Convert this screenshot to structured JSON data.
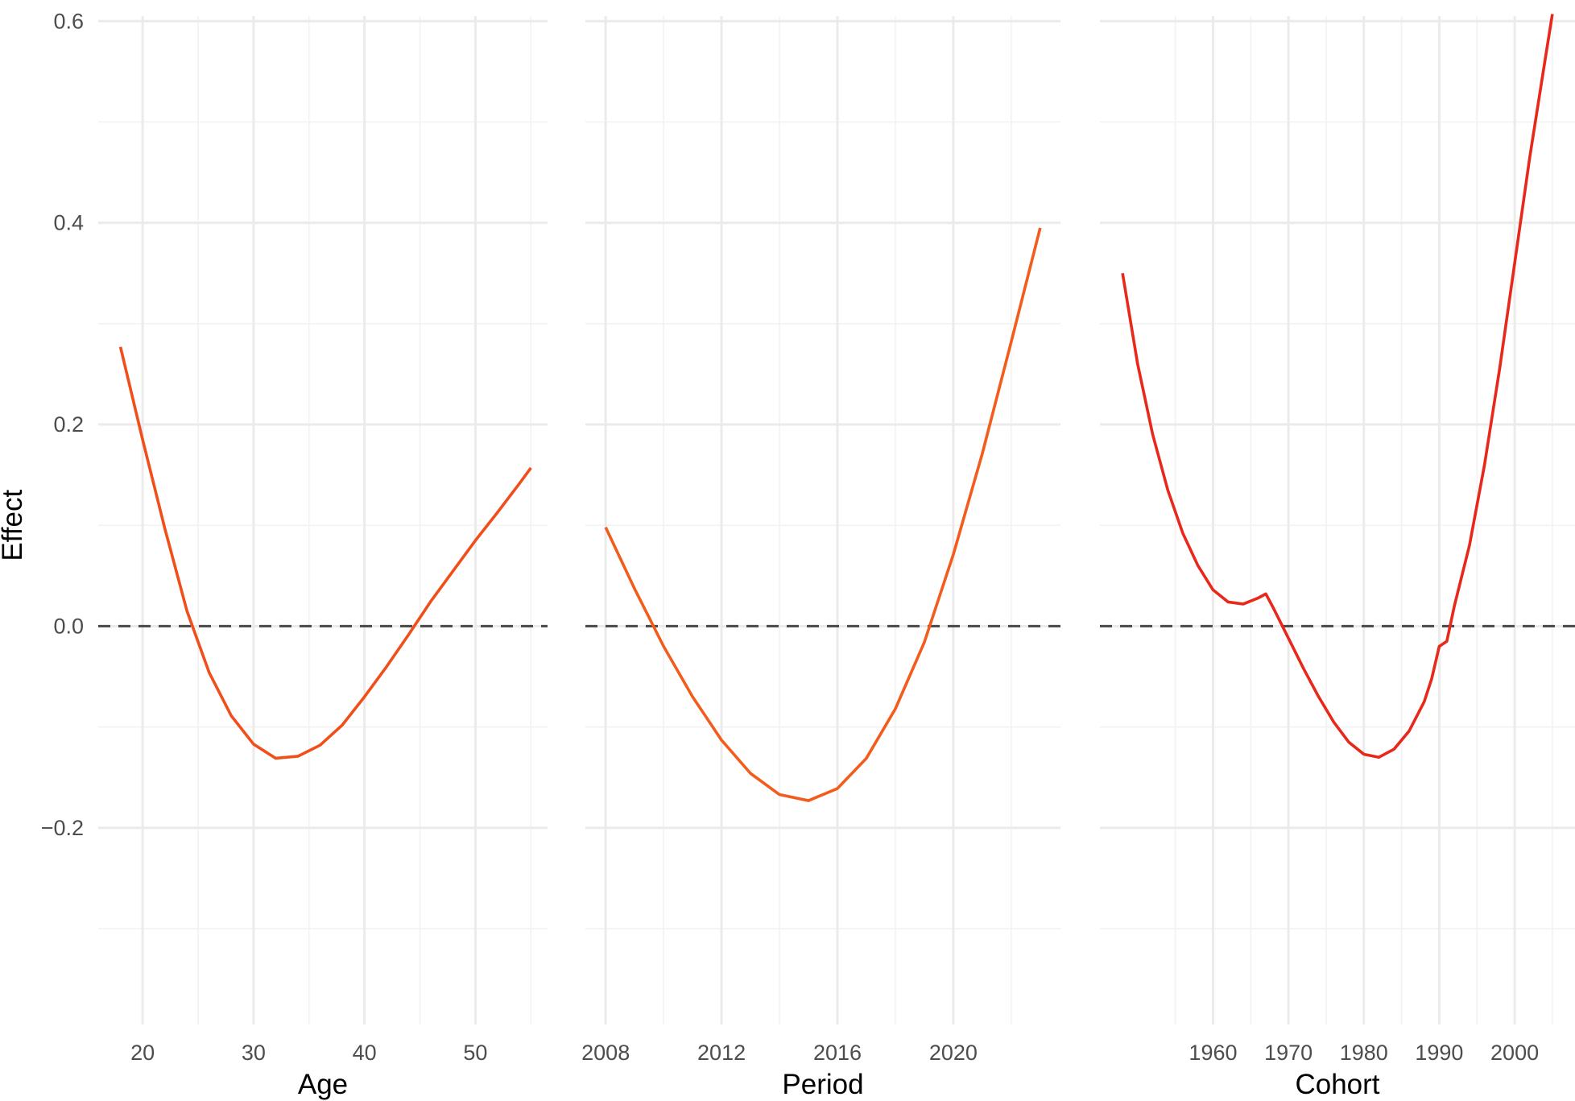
{
  "colors": {
    "age_line": "#F04E1A",
    "period_line": "#F25C1C",
    "cohort_line": "#E8281A",
    "zero_line": "#4D4D4D",
    "grid": "#EBEBEB"
  },
  "chart_data": {
    "type": "line",
    "layout": "facet",
    "ylabel": "Effect",
    "ylim": [
      -0.395,
      0.605
    ],
    "yticks": [
      {
        "value": 0.6,
        "label": "0.6"
      },
      {
        "value": 0.4,
        "label": "0.4"
      },
      {
        "value": 0.2,
        "label": "0.2"
      },
      {
        "value": 0.0,
        "label": "0.0"
      },
      {
        "value": -0.2,
        "label": "−0.2"
      }
    ],
    "y_minor": [
      0.5,
      0.3,
      0.1,
      -0.1,
      -0.3
    ],
    "reference_line": {
      "y": 0,
      "style": "dashed"
    },
    "grid": true,
    "legend": "none",
    "panels": [
      {
        "xlabel": "Age",
        "xlim": [
          16,
          56.5
        ],
        "xticks": [
          {
            "value": 20,
            "label": "20"
          },
          {
            "value": 30,
            "label": "30"
          },
          {
            "value": 40,
            "label": "40"
          },
          {
            "value": 50,
            "label": "50"
          }
        ],
        "x_minor": [
          25,
          35,
          45,
          55
        ],
        "color_key": "age_line",
        "series": [
          {
            "x": [
              18,
              20,
              22,
              24,
              26,
              28,
              30,
              32,
              34,
              36,
              38,
              40,
              42,
              44,
              46,
              48,
              50,
              52,
              54,
              55
            ],
            "y": [
              0.277,
              0.185,
              0.097,
              0.015,
              -0.046,
              -0.089,
              -0.117,
              -0.131,
              -0.129,
              -0.118,
              -0.098,
              -0.07,
              -0.04,
              -0.008,
              0.025,
              0.055,
              0.085,
              0.113,
              0.142,
              0.157
            ]
          }
        ]
      },
      {
        "xlabel": "Period",
        "xlim": [
          2007.3,
          2023.7
        ],
        "xticks": [
          {
            "value": 2008,
            "label": "2008"
          },
          {
            "value": 2012,
            "label": "2012"
          },
          {
            "value": 2016,
            "label": "2016"
          },
          {
            "value": 2020,
            "label": "2020"
          }
        ],
        "x_minor": [
          2010,
          2014,
          2018,
          2022
        ],
        "color_key": "period_line",
        "series": [
          {
            "x": [
              2008,
              2009,
              2010,
              2011,
              2012,
              2013,
              2014,
              2015,
              2016,
              2017,
              2018,
              2019,
              2020,
              2021,
              2022,
              2023
            ],
            "y": [
              0.098,
              0.037,
              -0.02,
              -0.07,
              -0.113,
              -0.146,
              -0.167,
              -0.173,
              -0.161,
              -0.131,
              -0.082,
              -0.016,
              0.071,
              0.171,
              0.282,
              0.395
            ]
          }
        ]
      },
      {
        "xlabel": "Cohort",
        "xlim": [
          1945,
          2008
        ],
        "xticks": [
          {
            "value": 1960,
            "label": "1960"
          },
          {
            "value": 1970,
            "label": "1970"
          },
          {
            "value": 1980,
            "label": "1980"
          },
          {
            "value": 1990,
            "label": "1990"
          },
          {
            "value": 2000,
            "label": "2000"
          }
        ],
        "x_minor": [
          1955,
          1965,
          1975,
          1985,
          1995,
          2005
        ],
        "color_key": "cohort_line",
        "series": [
          {
            "x": [
              1948,
              1950,
              1952,
              1954,
              1956,
              1958,
              1960,
              1962,
              1964,
              1966,
              1967,
              1968,
              1970,
              1972,
              1974,
              1976,
              1978,
              1980,
              1982,
              1984,
              1986,
              1988,
              1989,
              1990,
              1991,
              1992,
              1994,
              1996,
              1998,
              2000,
              2002,
              2004,
              2005
            ],
            "y": [
              0.35,
              0.26,
              0.19,
              0.135,
              0.092,
              0.06,
              0.036,
              0.024,
              0.022,
              0.028,
              0.032,
              0.018,
              -0.012,
              -0.042,
              -0.07,
              -0.095,
              -0.115,
              -0.127,
              -0.13,
              -0.122,
              -0.104,
              -0.075,
              -0.052,
              -0.02,
              -0.015,
              0.02,
              0.08,
              0.16,
              0.255,
              0.36,
              0.465,
              0.56,
              0.607
            ]
          }
        ]
      }
    ]
  }
}
